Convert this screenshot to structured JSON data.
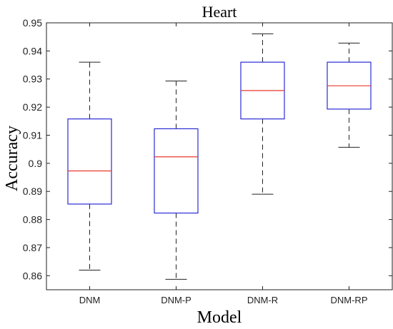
{
  "chart_data": {
    "type": "box",
    "title": "Heart",
    "xlabel": "Model",
    "ylabel": "Accuracy",
    "ylim": [
      0.855,
      0.95
    ],
    "yticks": [
      0.86,
      0.87,
      0.88,
      0.89,
      0.9,
      0.91,
      0.92,
      0.93,
      0.94,
      0.95
    ],
    "ytick_labels": [
      "0.86",
      "0.87",
      "0.88",
      "0.89",
      "0.9",
      "0.91",
      "0.92",
      "0.93",
      "0.94",
      "0.95"
    ],
    "categories": [
      "DNM",
      "DNM-P",
      "DNM-R",
      "DNM-RP"
    ],
    "boxes": [
      {
        "min": 0.862,
        "q1": 0.8855,
        "median": 0.8973,
        "q3": 0.9158,
        "max": 0.936
      },
      {
        "min": 0.8587,
        "q1": 0.8823,
        "median": 0.9023,
        "q3": 0.9123,
        "max": 0.9293
      },
      {
        "min": 0.889,
        "q1": 0.9158,
        "median": 0.9259,
        "q3": 0.936,
        "max": 0.9461
      },
      {
        "min": 0.9057,
        "q1": 0.9193,
        "median": 0.9276,
        "q3": 0.936,
        "max": 0.9428
      }
    ],
    "grid": false,
    "colors": {
      "box": "#2b2bd6",
      "median": "#e8392e",
      "whisker": "#222222"
    }
  }
}
